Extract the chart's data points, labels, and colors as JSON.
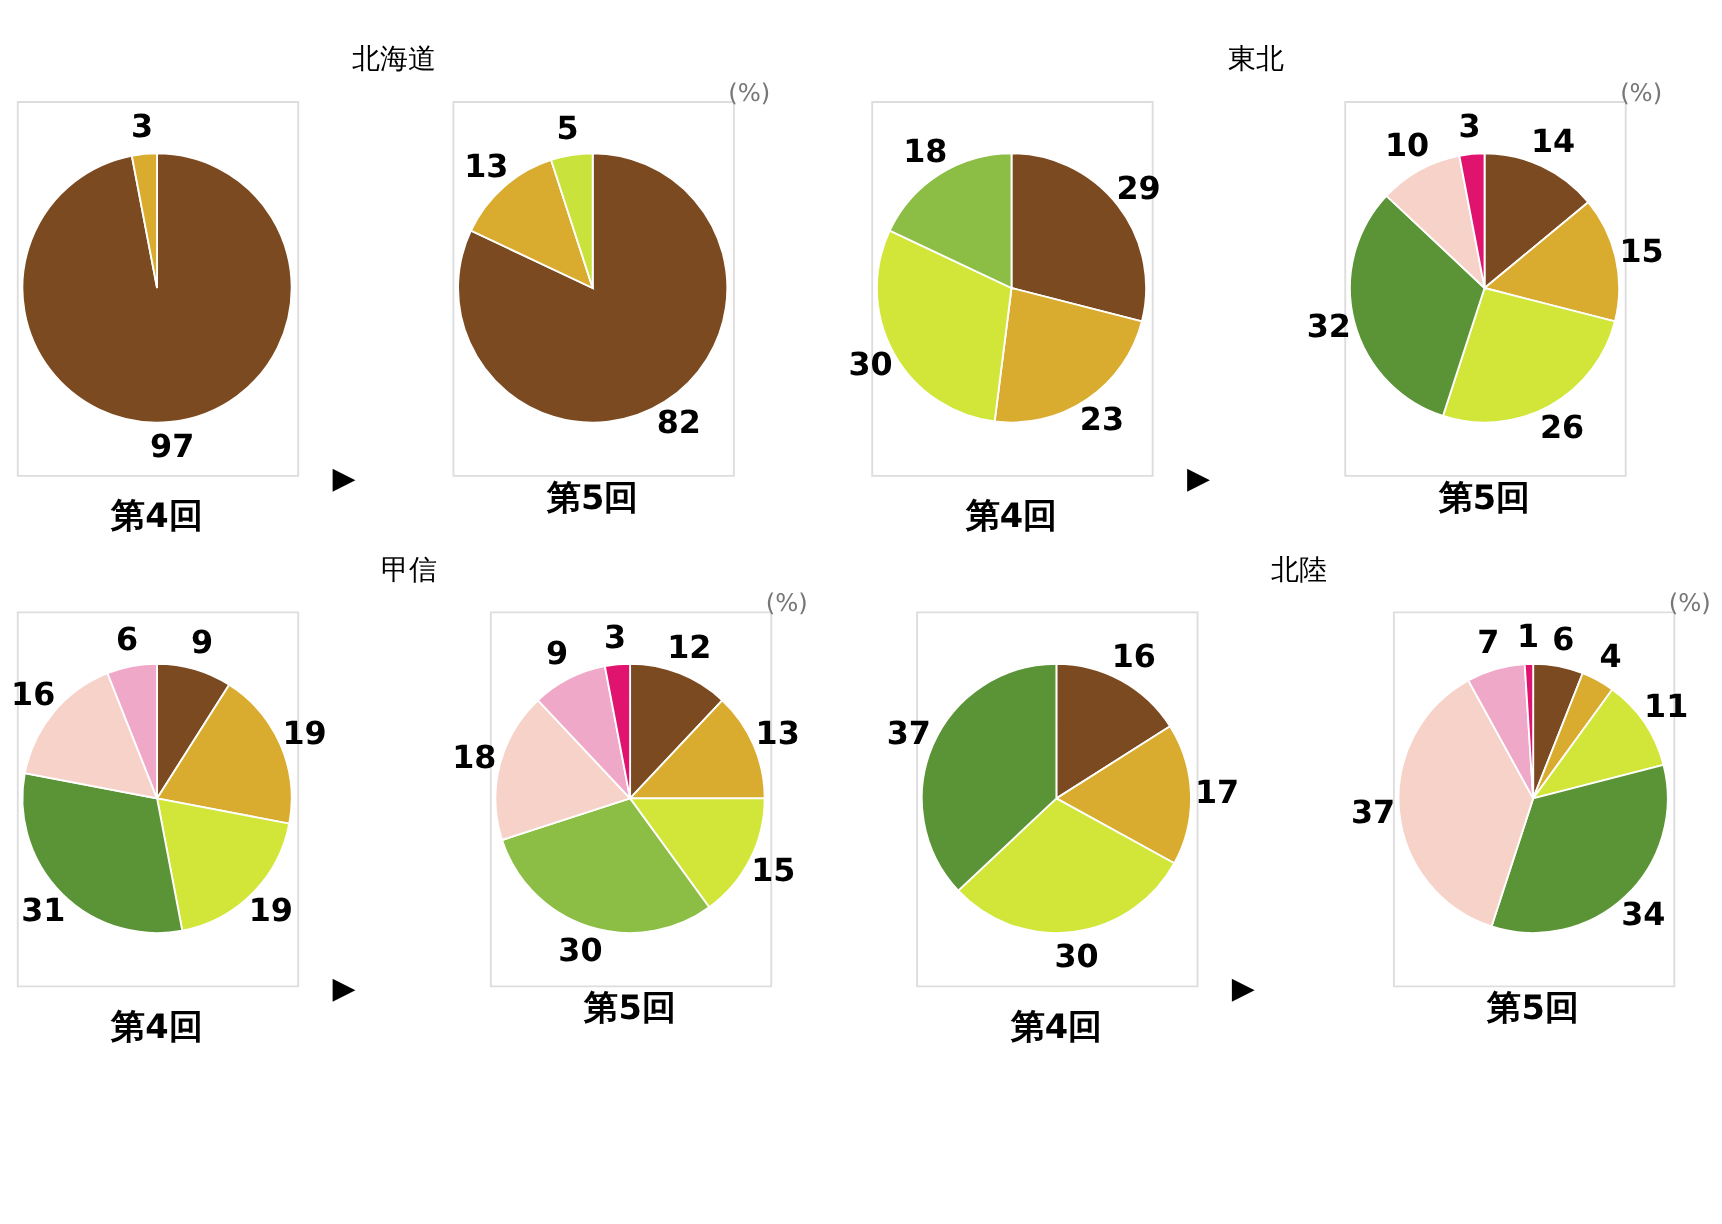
{
  "chart_data": [
    {
      "type": "pie",
      "title": "北海道",
      "xlabel": "第4回",
      "annotations": [
        "▶"
      ],
      "data_labels": true,
      "categories": [
        null,
        null
      ],
      "values": [
        97,
        3
      ],
      "colors": [
        "#7b4a21",
        "#d9ab2e"
      ]
    },
    {
      "type": "pie",
      "xlabel": "第5回",
      "annotations": [
        "(%)"
      ],
      "data_labels": true,
      "categories": [
        null,
        null,
        null
      ],
      "values": [
        82,
        13,
        5
      ],
      "colors": [
        "#7b4a21",
        "#d9ab2e",
        "#c9e33c"
      ]
    },
    {
      "type": "pie",
      "title": "東北",
      "xlabel": "第4回",
      "annotations": [
        "▶"
      ],
      "data_labels": true,
      "categories": [
        null,
        null,
        null,
        null
      ],
      "values": [
        29,
        23,
        30,
        18
      ],
      "colors": [
        "#7b4a21",
        "#d9ab2e",
        "#d2e63a",
        "#8cbd45"
      ]
    },
    {
      "type": "pie",
      "xlabel": "第5回",
      "annotations": [
        "(%)"
      ],
      "data_labels": true,
      "categories": [
        null,
        null,
        null,
        null,
        null,
        null
      ],
      "values": [
        14,
        15,
        26,
        32,
        10,
        3
      ],
      "colors": [
        "#7b4a21",
        "#d9ab2e",
        "#d2e63a",
        "#5a9437",
        "#f7d2c8",
        "#e0146e"
      ]
    },
    {
      "type": "pie",
      "title": "甲信",
      "xlabel": "第4回",
      "annotations": [
        "▶"
      ],
      "data_labels": true,
      "categories": [
        null,
        null,
        null,
        null,
        null,
        null
      ],
      "values": [
        9,
        19,
        19,
        31,
        16,
        6
      ],
      "colors": [
        "#7b4a21",
        "#d9ab2e",
        "#d2e63a",
        "#5a9437",
        "#f7d2c8",
        "#f0a8c8"
      ]
    },
    {
      "type": "pie",
      "xlabel": "第5回",
      "annotations": [
        "(%)"
      ],
      "data_labels": true,
      "categories": [
        null,
        null,
        null,
        null,
        null,
        null,
        null
      ],
      "values": [
        12,
        13,
        15,
        30,
        18,
        9,
        3
      ],
      "colors": [
        "#7b4a21",
        "#d9ab2e",
        "#d2e63a",
        "#8cbd45",
        "#f7d2c8",
        "#f0a8c8",
        "#e0146e"
      ]
    },
    {
      "type": "pie",
      "title": "北陸",
      "xlabel": "第4回",
      "annotations": [
        "▶"
      ],
      "data_labels": true,
      "categories": [
        null,
        null,
        null,
        null
      ],
      "values": [
        16,
        17,
        30,
        37
      ],
      "colors": [
        "#7b4a21",
        "#d9ab2e",
        "#d2e63a",
        "#5a9437"
      ]
    },
    {
      "type": "pie",
      "xlabel": "第5回",
      "annotations": [
        "(%)"
      ],
      "data_labels": true,
      "categories": [
        null,
        null,
        null,
        null,
        null,
        null,
        null
      ],
      "values": [
        6,
        4,
        11,
        34,
        37,
        7,
        1
      ],
      "colors": [
        "#7b4a21",
        "#d9ab2e",
        "#d2e63a",
        "#5a9437",
        "#f7d2c8",
        "#f0a8c8",
        "#e0146e"
      ]
    }
  ]
}
